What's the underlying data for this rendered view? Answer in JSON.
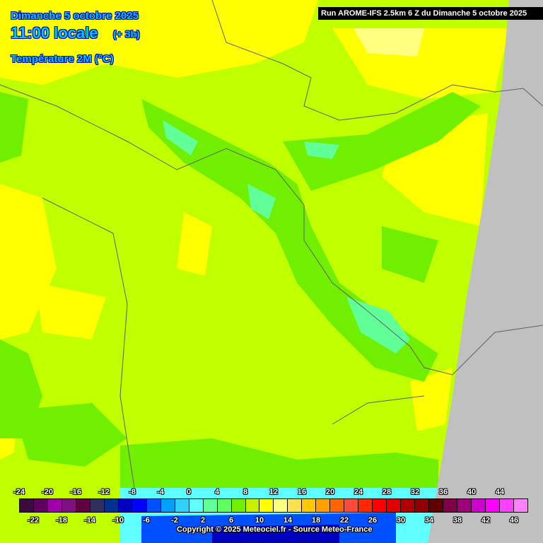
{
  "header": {
    "date": "Dimanche 5 octobre 2025",
    "time": "11:00 locale",
    "lead": "(+ 3h)",
    "parameter": "Température 2M (°C)"
  },
  "run_banner": "Run AROME-IFS 2.5km 6 Z du Dimanche 5 octobre 2025",
  "copyright": "Copyright © 2025 Meteociel.fr - Source Meteo-France",
  "legend": {
    "top_labels": [
      "-24",
      "-20",
      "-16",
      "-12",
      "-8",
      "-4",
      "0",
      "4",
      "8",
      "12",
      "16",
      "20",
      "24",
      "28",
      "32",
      "36",
      "40",
      "44"
    ],
    "bottom_labels": [
      "-22",
      "-18",
      "-14",
      "-10",
      "-6",
      "-2",
      "2",
      "6",
      "10",
      "14",
      "18",
      "22",
      "26",
      "30",
      "34",
      "38",
      "42",
      "46"
    ],
    "colors": [
      "#3c0a40",
      "#600060",
      "#a000a8",
      "#801080",
      "#600040",
      "#303060",
      "#003090",
      "#0000c0",
      "#0000ff",
      "#0050ff",
      "#00a0ff",
      "#30d0ff",
      "#60ffff",
      "#60ff98",
      "#60ff60",
      "#70f000",
      "#c8f000",
      "#ffff00",
      "#ffff80",
      "#ffe050",
      "#ffc800",
      "#ffa000",
      "#ff6400",
      "#ff4a3a",
      "#ff2800",
      "#ff0000",
      "#e00000",
      "#b00000",
      "#900000",
      "#600000",
      "#800048",
      "#a00078",
      "#d000d0",
      "#ff00ff",
      "#ff40ff",
      "#ff80ff"
    ]
  },
  "map_colors": {
    "base": "#c0ff00",
    "warm": "#ffff00",
    "cool": "#70f000",
    "cold": "#60ff60",
    "nodata": "#c0c0c0"
  }
}
